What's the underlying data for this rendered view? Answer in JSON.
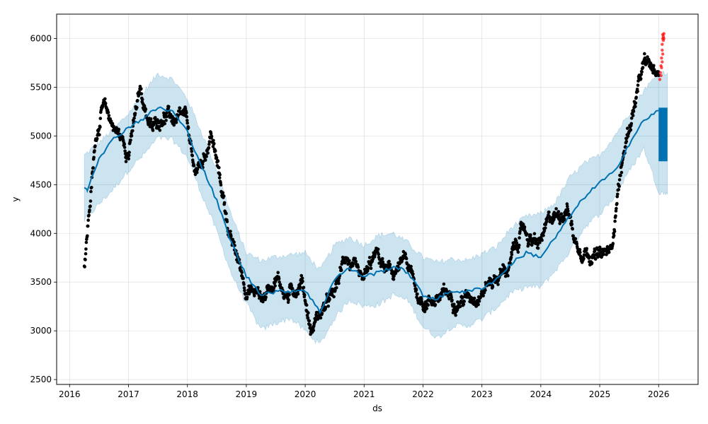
{
  "chart_data": {
    "type": "scatter",
    "title": "",
    "xlabel": "ds",
    "ylabel": "y",
    "xlim": [
      2015.78,
      2026.67
    ],
    "ylim": [
      2450,
      6250
    ],
    "x_ticks": [
      {
        "value": 2016,
        "label": "2016"
      },
      {
        "value": 2017,
        "label": "2017"
      },
      {
        "value": 2018,
        "label": "2018"
      },
      {
        "value": 2019,
        "label": "2019"
      },
      {
        "value": 2020,
        "label": "2020"
      },
      {
        "value": 2021,
        "label": "2021"
      },
      {
        "value": 2022,
        "label": "2022"
      },
      {
        "value": 2023,
        "label": "2023"
      },
      {
        "value": 2024,
        "label": "2024"
      },
      {
        "value": 2025,
        "label": "2025"
      },
      {
        "value": 2026,
        "label": "2026"
      }
    ],
    "y_ticks": [
      {
        "value": 2500,
        "label": "2500"
      },
      {
        "value": 3000,
        "label": "3000"
      },
      {
        "value": 3500,
        "label": "3500"
      },
      {
        "value": 4000,
        "label": "4000"
      },
      {
        "value": 4500,
        "label": "4500"
      },
      {
        "value": 5000,
        "label": "5000"
      },
      {
        "value": 5500,
        "label": "5500"
      },
      {
        "value": 6000,
        "label": "6000"
      }
    ],
    "grid": true,
    "colors": {
      "observed": "#000000",
      "anomaly": "#ff0000",
      "forecast": "#0072b2",
      "interval": "#0072b2"
    },
    "series": [
      {
        "type": "band",
        "upper": [
          [
            2016.25,
            4800
          ],
          [
            2016.5,
            4930
          ],
          [
            2016.75,
            5070
          ],
          [
            2017.0,
            5230
          ],
          [
            2017.25,
            5440
          ],
          [
            2017.5,
            5640
          ],
          [
            2017.75,
            5580
          ],
          [
            2018.0,
            5380
          ],
          [
            2018.25,
            5020
          ],
          [
            2018.5,
            4650
          ],
          [
            2018.75,
            4180
          ],
          [
            2019.0,
            3800
          ],
          [
            2019.25,
            3720
          ],
          [
            2019.5,
            3760
          ],
          [
            2019.75,
            3780
          ],
          [
            2020.0,
            3800
          ],
          [
            2020.25,
            3620
          ],
          [
            2020.5,
            3880
          ],
          [
            2020.75,
            3960
          ],
          [
            2021.0,
            3880
          ],
          [
            2021.25,
            3980
          ],
          [
            2021.5,
            4000
          ],
          [
            2021.75,
            3900
          ],
          [
            2022.0,
            3750
          ],
          [
            2022.25,
            3700
          ],
          [
            2022.5,
            3740
          ],
          [
            2022.75,
            3720
          ],
          [
            2023.0,
            3790
          ],
          [
            2023.25,
            3860
          ],
          [
            2023.5,
            4060
          ],
          [
            2023.75,
            4170
          ],
          [
            2024.0,
            4200
          ],
          [
            2024.25,
            4320
          ],
          [
            2024.5,
            4580
          ],
          [
            2024.75,
            4720
          ],
          [
            2025.0,
            4800
          ],
          [
            2025.25,
            5000
          ],
          [
            2025.5,
            5230
          ],
          [
            2025.75,
            5470
          ],
          [
            2026.0,
            5640
          ],
          [
            2026.15,
            5650
          ]
        ],
        "lower": [
          [
            2016.25,
            4130
          ],
          [
            2016.5,
            4300
          ],
          [
            2016.75,
            4460
          ],
          [
            2017.0,
            4650
          ],
          [
            2017.25,
            4800
          ],
          [
            2017.5,
            4980
          ],
          [
            2017.75,
            4960
          ],
          [
            2018.0,
            4780
          ],
          [
            2018.25,
            4390
          ],
          [
            2018.5,
            4020
          ],
          [
            2018.75,
            3580
          ],
          [
            2019.0,
            3280
          ],
          [
            2019.25,
            3010
          ],
          [
            2019.5,
            3080
          ],
          [
            2019.75,
            3130
          ],
          [
            2020.0,
            3000
          ],
          [
            2020.25,
            2860
          ],
          [
            2020.5,
            3130
          ],
          [
            2020.75,
            3320
          ],
          [
            2021.0,
            3250
          ],
          [
            2021.25,
            3270
          ],
          [
            2021.5,
            3370
          ],
          [
            2021.75,
            3310
          ],
          [
            2022.0,
            3040
          ],
          [
            2022.25,
            2930
          ],
          [
            2022.5,
            3050
          ],
          [
            2022.75,
            3050
          ],
          [
            2023.0,
            3120
          ],
          [
            2023.25,
            3240
          ],
          [
            2023.5,
            3390
          ],
          [
            2023.75,
            3450
          ],
          [
            2024.0,
            3450
          ],
          [
            2024.25,
            3620
          ],
          [
            2024.5,
            3820
          ],
          [
            2024.75,
            4070
          ],
          [
            2025.0,
            4200
          ],
          [
            2025.25,
            4370
          ],
          [
            2025.5,
            4640
          ],
          [
            2025.75,
            4870
          ],
          [
            2026.0,
            4430
          ],
          [
            2026.15,
            4400
          ]
        ]
      },
      {
        "type": "line",
        "points": [
          [
            2016.25,
            4470
          ],
          [
            2016.3,
            4450
          ],
          [
            2016.5,
            4780
          ],
          [
            2016.75,
            4970
          ],
          [
            2017.0,
            5090
          ],
          [
            2017.25,
            5180
          ],
          [
            2017.5,
            5290
          ],
          [
            2017.75,
            5250
          ],
          [
            2018.0,
            5040
          ],
          [
            2018.25,
            4680
          ],
          [
            2018.5,
            4330
          ],
          [
            2018.75,
            3900
          ],
          [
            2019.0,
            3560
          ],
          [
            2019.25,
            3380
          ],
          [
            2019.5,
            3400
          ],
          [
            2019.75,
            3410
          ],
          [
            2020.0,
            3420
          ],
          [
            2020.25,
            3190
          ],
          [
            2020.5,
            3540
          ],
          [
            2020.75,
            3640
          ],
          [
            2021.0,
            3560
          ],
          [
            2021.25,
            3600
          ],
          [
            2021.5,
            3660
          ],
          [
            2021.75,
            3600
          ],
          [
            2022.0,
            3360
          ],
          [
            2022.25,
            3330
          ],
          [
            2022.5,
            3410
          ],
          [
            2022.75,
            3400
          ],
          [
            2023.0,
            3440
          ],
          [
            2023.25,
            3530
          ],
          [
            2023.5,
            3690
          ],
          [
            2023.75,
            3800
          ],
          [
            2024.0,
            3760
          ],
          [
            2024.25,
            3960
          ],
          [
            2024.5,
            4180
          ],
          [
            2024.75,
            4380
          ],
          [
            2025.0,
            4520
          ],
          [
            2025.25,
            4630
          ],
          [
            2025.5,
            4920
          ],
          [
            2025.75,
            5160
          ],
          [
            2026.0,
            5260
          ]
        ]
      },
      {
        "type": "forecast_block",
        "x_start": 2026.0,
        "x_end": 2026.15,
        "y_low": 4740,
        "y_high": 5290
      },
      {
        "type": "observed_path",
        "x_start": 2016.25,
        "x_end": 2026.0,
        "control": [
          [
            2016.25,
            3650
          ],
          [
            2016.33,
            4200
          ],
          [
            2016.45,
            5000
          ],
          [
            2016.55,
            5300
          ],
          [
            2016.75,
            5100
          ],
          [
            2017.0,
            4850
          ],
          [
            2017.2,
            5450
          ],
          [
            2017.4,
            5050
          ],
          [
            2017.6,
            5250
          ],
          [
            2017.8,
            5150
          ],
          [
            2018.0,
            5100
          ],
          [
            2018.1,
            4600
          ],
          [
            2018.25,
            4700
          ],
          [
            2018.4,
            5050
          ],
          [
            2018.55,
            4550
          ],
          [
            2018.75,
            3900
          ],
          [
            2019.0,
            3450
          ],
          [
            2019.3,
            3350
          ],
          [
            2019.5,
            3600
          ],
          [
            2019.7,
            3350
          ],
          [
            2019.95,
            3550
          ],
          [
            2020.1,
            3000
          ],
          [
            2020.2,
            3150
          ],
          [
            2020.5,
            3350
          ],
          [
            2020.7,
            3800
          ],
          [
            2020.95,
            3400
          ],
          [
            2021.2,
            3750
          ],
          [
            2021.45,
            3550
          ],
          [
            2021.7,
            3700
          ],
          [
            2021.95,
            3300
          ],
          [
            2022.2,
            3350
          ],
          [
            2022.5,
            3350
          ],
          [
            2022.75,
            3350
          ],
          [
            2023.0,
            3450
          ],
          [
            2023.2,
            3550
          ],
          [
            2023.45,
            3650
          ],
          [
            2023.7,
            4050
          ],
          [
            2023.95,
            3850
          ],
          [
            2024.2,
            4150
          ],
          [
            2024.45,
            4300
          ],
          [
            2024.6,
            3900
          ],
          [
            2024.85,
            3850
          ],
          [
            2025.0,
            3750
          ],
          [
            2025.2,
            3800
          ],
          [
            2025.3,
            4450
          ],
          [
            2025.45,
            4950
          ],
          [
            2025.6,
            5350
          ],
          [
            2025.75,
            5700
          ],
          [
            2026.0,
            5650
          ]
        ],
        "noise": 150,
        "count": 1750
      },
      {
        "type": "anomaly_points",
        "points": [
          [
            2026.02,
            5580
          ],
          [
            2026.03,
            5650
          ],
          [
            2026.04,
            5720
          ],
          [
            2026.05,
            5800
          ],
          [
            2026.06,
            5880
          ],
          [
            2026.06,
            5940
          ],
          [
            2026.07,
            6000
          ],
          [
            2026.07,
            6040
          ],
          [
            2026.08,
            6020
          ],
          [
            2026.08,
            5980
          ],
          [
            2026.09,
            6050
          ],
          [
            2026.09,
            6000
          ],
          [
            2026.04,
            5620
          ],
          [
            2026.05,
            5700
          ],
          [
            2026.06,
            5760
          ],
          [
            2026.07,
            5840
          ]
        ]
      }
    ]
  }
}
